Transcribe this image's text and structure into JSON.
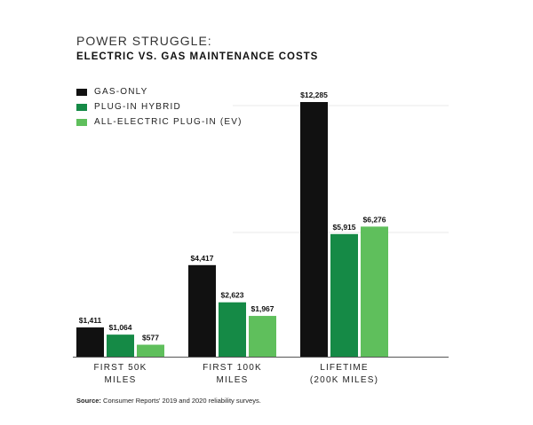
{
  "chart_data": {
    "type": "bar",
    "title": "POWER STRUGGLE:",
    "subtitle": "ELECTRIC VS. GAS MAINTENANCE COSTS",
    "categories": [
      [
        "FIRST 50K",
        "MILES"
      ],
      [
        "FIRST 100K",
        "MILES"
      ],
      [
        "LIFETIME",
        "(200K MILES)"
      ]
    ],
    "series": [
      {
        "name": "GAS-ONLY",
        "color": "#111111",
        "values": [
          1411,
          4417,
          12285
        ],
        "labels": [
          "$1,411",
          "$4,417",
          "$12,285"
        ]
      },
      {
        "name": "PLUG-IN HYBRID",
        "color": "#158a46",
        "values": [
          1064,
          2623,
          5915
        ],
        "labels": [
          "$1,064",
          "$2,623",
          "$5,915"
        ]
      },
      {
        "name": "ALL-ELECTRIC PLUG-IN (EV)",
        "color": "#5fbf5c",
        "values": [
          577,
          1967,
          6276
        ],
        "labels": [
          "$577",
          "$1,967",
          "$6,276"
        ]
      }
    ],
    "ylim": [
      0,
      12285
    ],
    "grid": true,
    "legend_position": "top-left"
  },
  "source": {
    "prefix": "Source:",
    "text": " Consumer Reports' 2019 and 2020 reliability surveys."
  }
}
